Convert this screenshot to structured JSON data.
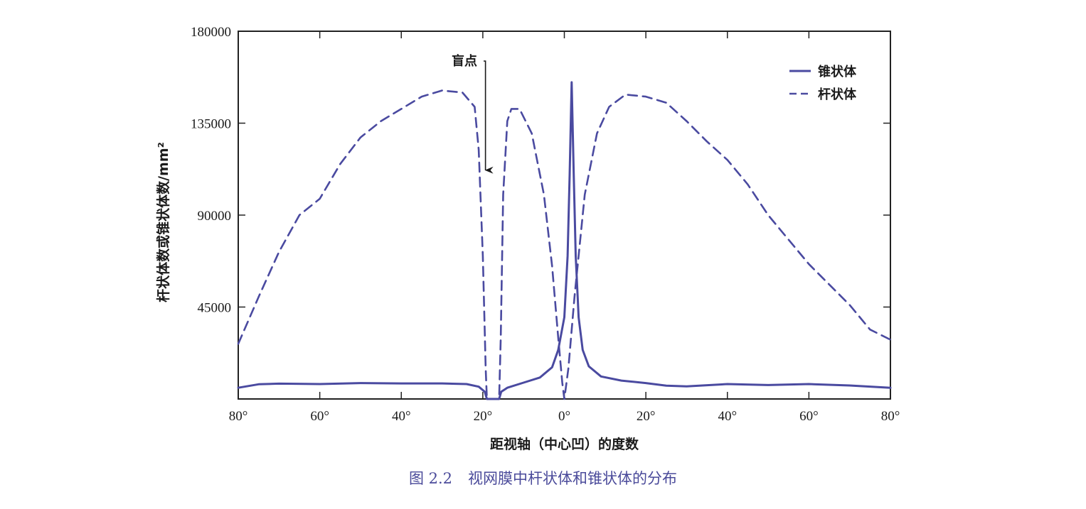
{
  "chart_data": {
    "type": "line",
    "xlabel": "距视轴（中心凹）的度数",
    "ylabel": "杆状体数或锥状体数/mm²",
    "xlim": [
      -80,
      80
    ],
    "ylim": [
      0,
      180000
    ],
    "x_ticks": [
      -80,
      -60,
      -40,
      -20,
      0,
      20,
      40,
      60,
      80
    ],
    "x_tick_labels": [
      "80°",
      "60°",
      "40°",
      "20°",
      "0°",
      "20°",
      "40°",
      "60°",
      "80°"
    ],
    "y_ticks": [
      45000,
      90000,
      135000,
      180000
    ],
    "y_tick_labels": [
      "45000",
      "90000",
      "135000",
      "180000"
    ],
    "legend_position": "top-right",
    "series": [
      {
        "name": "锥状体",
        "style": "solid",
        "points": [
          [
            -80,
            5500
          ],
          [
            -75,
            7200
          ],
          [
            -70,
            7500
          ],
          [
            -60,
            7300
          ],
          [
            -50,
            7800
          ],
          [
            -40,
            7600
          ],
          [
            -30,
            7600
          ],
          [
            -24,
            7300
          ],
          [
            -21,
            6000
          ],
          [
            -19.5,
            3500
          ],
          [
            -19,
            0
          ],
          [
            -16,
            0
          ],
          [
            -15.5,
            3500
          ],
          [
            -14,
            5500
          ],
          [
            -10,
            8000
          ],
          [
            -6,
            10500
          ],
          [
            -3,
            15500
          ],
          [
            -1.5,
            24000
          ],
          [
            0,
            40000
          ],
          [
            0.8,
            70000
          ],
          [
            1.3,
            110000
          ],
          [
            1.8,
            155000
          ],
          [
            2.3,
            110000
          ],
          [
            2.8,
            70000
          ],
          [
            3.5,
            40000
          ],
          [
            4.5,
            24000
          ],
          [
            6,
            16000
          ],
          [
            9,
            11000
          ],
          [
            14,
            9000
          ],
          [
            20,
            7800
          ],
          [
            25,
            6500
          ],
          [
            30,
            6200
          ],
          [
            40,
            7300
          ],
          [
            50,
            6800
          ],
          [
            60,
            7300
          ],
          [
            70,
            6600
          ],
          [
            80,
            5500
          ]
        ]
      },
      {
        "name": "杆状体",
        "style": "dashed",
        "points": [
          [
            -80,
            27000
          ],
          [
            -75,
            50000
          ],
          [
            -70,
            72000
          ],
          [
            -65,
            90000
          ],
          [
            -60,
            98000
          ],
          [
            -55,
            115000
          ],
          [
            -50,
            128000
          ],
          [
            -45,
            136000
          ],
          [
            -40,
            142000
          ],
          [
            -35,
            148000
          ],
          [
            -30,
            151000
          ],
          [
            -25,
            150000
          ],
          [
            -22,
            143000
          ],
          [
            -21,
            122000
          ],
          [
            -20,
            70000
          ],
          [
            -19.3,
            15000
          ],
          [
            -19,
            0
          ],
          [
            -16,
            0
          ],
          [
            -15.6,
            30000
          ],
          [
            -15,
            100000
          ],
          [
            -14,
            136000
          ],
          [
            -13,
            142000
          ],
          [
            -11,
            142000
          ],
          [
            -8,
            130000
          ],
          [
            -5,
            100000
          ],
          [
            -3,
            65000
          ],
          [
            -1.5,
            30000
          ],
          [
            -0.5,
            8000
          ],
          [
            0,
            0
          ],
          [
            1,
            15000
          ],
          [
            2.5,
            50000
          ],
          [
            5,
            100000
          ],
          [
            8,
            130000
          ],
          [
            11,
            143000
          ],
          [
            15,
            149000
          ],
          [
            20,
            148000
          ],
          [
            25,
            145000
          ],
          [
            30,
            136000
          ],
          [
            35,
            126000
          ],
          [
            40,
            117000
          ],
          [
            45,
            105000
          ],
          [
            50,
            90000
          ],
          [
            55,
            78000
          ],
          [
            60,
            66000
          ],
          [
            65,
            56000
          ],
          [
            70,
            46000
          ],
          [
            75,
            34000
          ],
          [
            80,
            29000
          ]
        ]
      }
    ],
    "annotations": [
      {
        "text": "盲点",
        "x": -19,
        "y": 112000,
        "type": "arrow"
      }
    ]
  },
  "figure": {
    "number": "图 2.2",
    "caption": "视网膜中杆状体和锥状体的分布"
  },
  "colors": {
    "line": "#4a4aa0",
    "axis": "#222222",
    "caption": "#4a4a9a"
  }
}
